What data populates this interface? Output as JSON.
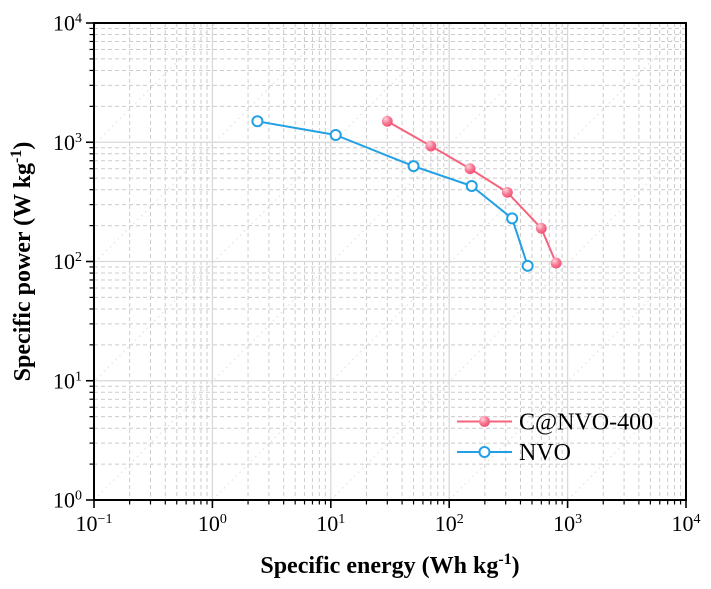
{
  "chart_data": {
    "type": "line",
    "title": "",
    "xlabel": "Specific energy (Wh kg⁻¹)",
    "ylabel": "Specific power (W kg⁻¹)",
    "xlabel_parts": {
      "main": "Specific energy (Wh kg",
      "sup": "-1",
      "close": ")"
    },
    "ylabel_parts": {
      "main": "Specific power (W kg",
      "sup": "-1",
      "close": ")"
    },
    "log_x": true,
    "log_y": true,
    "xlim": [
      0.1,
      10000
    ],
    "ylim": [
      1,
      10000
    ],
    "tick_base": "10",
    "x_tick_exponents": [
      "-1",
      "0",
      "1",
      "2",
      "3",
      "4"
    ],
    "y_tick_exponents": [
      "0",
      "1",
      "2",
      "3",
      "4"
    ],
    "grid": {
      "major": "solid",
      "minor": "dashed",
      "diagonal_guides": "dotted"
    },
    "legend": {
      "position": "lower-right",
      "items": [
        "C@NVO-400",
        "NVO"
      ]
    },
    "series": [
      {
        "name": "C@NVO-400",
        "color": "#f5647f",
        "marker": "filled-ball",
        "points": [
          [
            30,
            1500
          ],
          [
            70,
            930
          ],
          [
            150,
            600
          ],
          [
            310,
            380
          ],
          [
            600,
            190
          ],
          [
            800,
            97
          ]
        ]
      },
      {
        "name": "NVO",
        "color": "#22a0e6",
        "marker": "open-circle",
        "points": [
          [
            2.4,
            1500
          ],
          [
            11,
            1150
          ],
          [
            50,
            630
          ],
          [
            155,
            430
          ],
          [
            340,
            230
          ],
          [
            460,
            92
          ]
        ]
      }
    ],
    "colors": {
      "pink_line": "#f5647f",
      "pink_ball_edge": "#ee4066",
      "pink_ball_highlight": "#ffd4de",
      "blue_line": "#22a0e6",
      "grid_major": "#d8d8d8",
      "grid_minor": "#cccccc",
      "diagonal_guide": "#e2e2e2",
      "frame": "#000000",
      "text": "#000000",
      "plot_background": "#ffffff"
    }
  }
}
